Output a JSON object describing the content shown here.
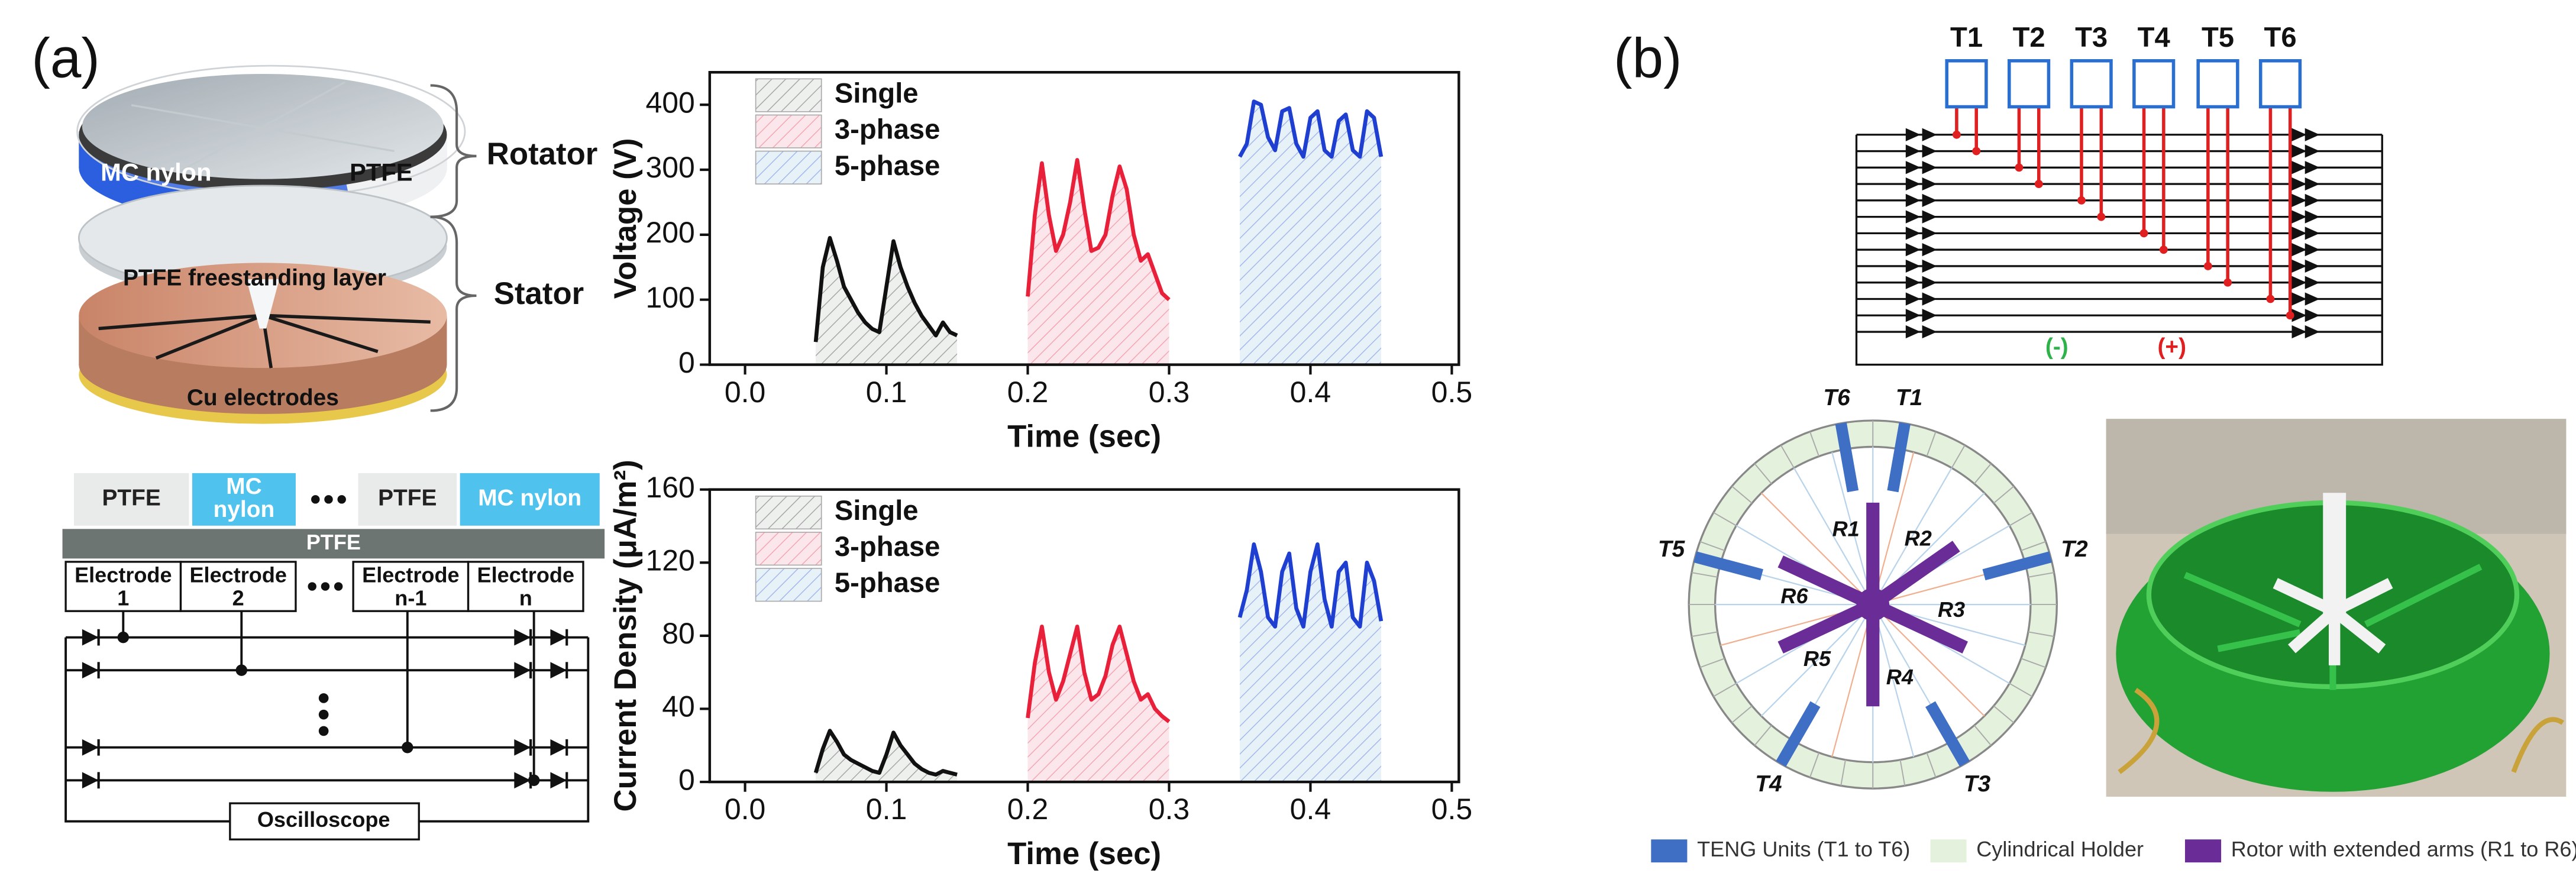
{
  "panel_labels": [
    "(a)",
    "(b)"
  ],
  "disk_diagram": {
    "rotator": "Rotator",
    "stator": "Stator",
    "mc_nylon": "MC nylon",
    "ptfe": "PTFE",
    "freestanding": "PTFE freestanding layer",
    "cu": "Cu electrodes"
  },
  "schematic": {
    "top_layers": [
      [
        "PTFE"
      ],
      [
        "MC",
        "nylon"
      ],
      [
        "PTFE"
      ],
      [
        "MC nylon"
      ]
    ],
    "substrate": "PTFE",
    "electrodes": [
      [
        "Electrode",
        "1"
      ],
      [
        "Electrode",
        "2"
      ],
      [
        "Electrode",
        "n-1"
      ],
      [
        "Electrode",
        "n"
      ]
    ],
    "oscilloscope": "Oscilloscope"
  },
  "chart_data": [
    {
      "type": "line",
      "xlabel": "Time (sec)",
      "ylabel": "Voltage (V)",
      "xlim": [
        -0.025,
        0.505
      ],
      "ylim": [
        0,
        450
      ],
      "xticks": [
        {
          "value": 0,
          "label": "0.0"
        },
        0.1,
        0.2,
        0.3,
        0.4,
        0.5
      ],
      "yticks": [
        0,
        100,
        200,
        300,
        400
      ],
      "legend": "upper left",
      "series": [
        {
          "name": "Single",
          "color": "#111111",
          "fill": "#eef0ee",
          "x": [
            0.05,
            0.055,
            0.06,
            0.065,
            0.07,
            0.075,
            0.08,
            0.085,
            0.09,
            0.095,
            0.1,
            0.105,
            0.11,
            0.115,
            0.12,
            0.125,
            0.13,
            0.135,
            0.14,
            0.145,
            0.15
          ],
          "values": [
            35,
            150,
            195,
            160,
            120,
            100,
            80,
            65,
            55,
            50,
            120,
            190,
            150,
            120,
            95,
            75,
            60,
            45,
            65,
            50,
            45
          ]
        },
        {
          "name": "3-phase",
          "color": "#e8203a",
          "fill": "#fbe6ec",
          "x": [
            0.2,
            0.205,
            0.21,
            0.215,
            0.22,
            0.225,
            0.23,
            0.235,
            0.24,
            0.245,
            0.25,
            0.255,
            0.26,
            0.265,
            0.27,
            0.275,
            0.28,
            0.285,
            0.29,
            0.295,
            0.3
          ],
          "values": [
            105,
            230,
            310,
            230,
            175,
            200,
            250,
            315,
            240,
            175,
            180,
            200,
            260,
            305,
            270,
            200,
            160,
            170,
            140,
            110,
            100
          ]
        },
        {
          "name": "5-phase",
          "color": "#1f3fd0",
          "fill": "#e6f1f8",
          "x": [
            0.35,
            0.355,
            0.36,
            0.365,
            0.37,
            0.375,
            0.38,
            0.385,
            0.39,
            0.395,
            0.4,
            0.405,
            0.41,
            0.415,
            0.42,
            0.425,
            0.43,
            0.435,
            0.44,
            0.445,
            0.45
          ],
          "values": [
            320,
            340,
            405,
            400,
            350,
            330,
            390,
            395,
            340,
            320,
            380,
            390,
            330,
            320,
            375,
            385,
            330,
            320,
            390,
            380,
            320
          ]
        }
      ]
    },
    {
      "type": "line",
      "xlabel": "Time (sec)",
      "ylabel": "Current Density (μA/m²)",
      "xlim": [
        -0.025,
        0.505
      ],
      "ylim": [
        0,
        160
      ],
      "xticks": [
        {
          "value": 0,
          "label": "0.0"
        },
        0.1,
        0.2,
        0.3,
        0.4,
        0.5
      ],
      "yticks": [
        0,
        40,
        80,
        120,
        160
      ],
      "legend": "upper left",
      "series": [
        {
          "name": "Single",
          "color": "#111111",
          "fill": "#eef0ee",
          "x": [
            0.05,
            0.055,
            0.06,
            0.065,
            0.07,
            0.075,
            0.08,
            0.085,
            0.09,
            0.095,
            0.1,
            0.105,
            0.11,
            0.115,
            0.12,
            0.125,
            0.13,
            0.135,
            0.14,
            0.145,
            0.15
          ],
          "values": [
            5,
            18,
            28,
            22,
            15,
            12,
            10,
            8,
            6,
            5,
            15,
            27,
            20,
            15,
            10,
            7,
            5,
            4,
            6,
            5,
            4
          ]
        },
        {
          "name": "3-phase",
          "color": "#e8203a",
          "fill": "#fbe6ec",
          "x": [
            0.2,
            0.205,
            0.21,
            0.215,
            0.22,
            0.225,
            0.23,
            0.235,
            0.24,
            0.245,
            0.25,
            0.255,
            0.26,
            0.265,
            0.27,
            0.275,
            0.28,
            0.285,
            0.29,
            0.295,
            0.3
          ],
          "values": [
            35,
            65,
            85,
            60,
            45,
            55,
            70,
            85,
            60,
            45,
            48,
            58,
            75,
            85,
            70,
            55,
            45,
            48,
            40,
            36,
            33
          ]
        },
        {
          "name": "5-phase",
          "color": "#1f3fd0",
          "fill": "#e6f1f8",
          "x": [
            0.35,
            0.355,
            0.36,
            0.365,
            0.37,
            0.375,
            0.38,
            0.385,
            0.39,
            0.395,
            0.4,
            0.405,
            0.41,
            0.415,
            0.42,
            0.425,
            0.43,
            0.435,
            0.44,
            0.445,
            0.45
          ],
          "values": [
            90,
            105,
            130,
            115,
            90,
            85,
            115,
            125,
            95,
            85,
            115,
            130,
            100,
            85,
            115,
            120,
            90,
            85,
            120,
            110,
            88
          ]
        }
      ]
    }
  ],
  "circuit_b": {
    "units": [
      "T1",
      "T2",
      "T3",
      "T4",
      "T5",
      "T6"
    ],
    "negative": "(-)",
    "positive": "(+)"
  },
  "rotor_diagram": {
    "teng_units": [
      "T1",
      "T2",
      "T3",
      "T4",
      "T5",
      "T6"
    ],
    "rotor_arms": [
      "R1",
      "R2",
      "R3",
      "R4",
      "R5",
      "R6"
    ]
  },
  "legend_b": [
    "TENG Units (T1 to T6)",
    "Cylindrical Holder",
    "Rotor with extended arms (R1 to R6)"
  ]
}
